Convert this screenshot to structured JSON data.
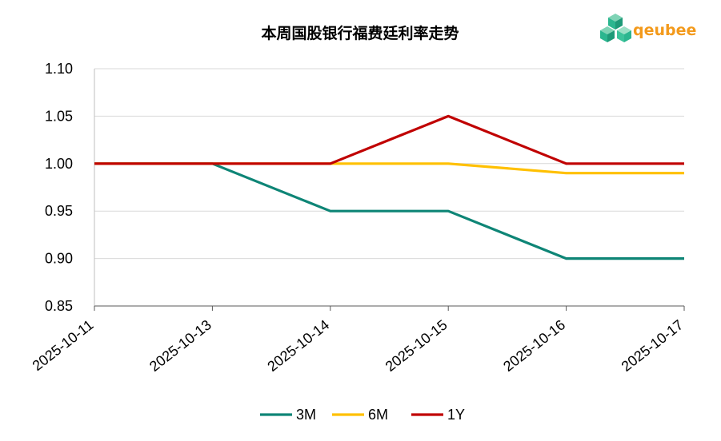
{
  "chart_data": {
    "type": "line",
    "title": "本周国股银行福费廷利率走势",
    "categories": [
      "2025-10-11",
      "2025-10-13",
      "2025-10-14",
      "2025-10-15",
      "2025-10-16",
      "2025-10-17"
    ],
    "series": [
      {
        "name": "3M",
        "color": "#0e8576",
        "values": [
          1.0,
          1.0,
          0.95,
          0.95,
          0.9,
          0.9
        ]
      },
      {
        "name": "6M",
        "color": "#ffc000",
        "values": [
          1.0,
          1.0,
          1.0,
          1.0,
          0.99,
          0.99
        ]
      },
      {
        "name": "1Y",
        "color": "#c00000",
        "values": [
          1.0,
          1.0,
          1.0,
          1.05,
          1.0,
          1.0
        ]
      }
    ],
    "ylim": [
      0.85,
      1.1
    ],
    "yticks": [
      0.85,
      0.9,
      0.95,
      1.0,
      1.05,
      1.1
    ],
    "ytick_labels": [
      "0.85",
      "0.90",
      "0.95",
      "1.00",
      "1.05",
      "1.10"
    ],
    "xlabel": "",
    "ylabel": "",
    "grid": true,
    "legend_position": "bottom"
  },
  "brand": {
    "name": "qeubee",
    "icon": "qeubee-cube-logo-icon",
    "color": "#f39a1c",
    "logo_color": "#2bb68f"
  }
}
